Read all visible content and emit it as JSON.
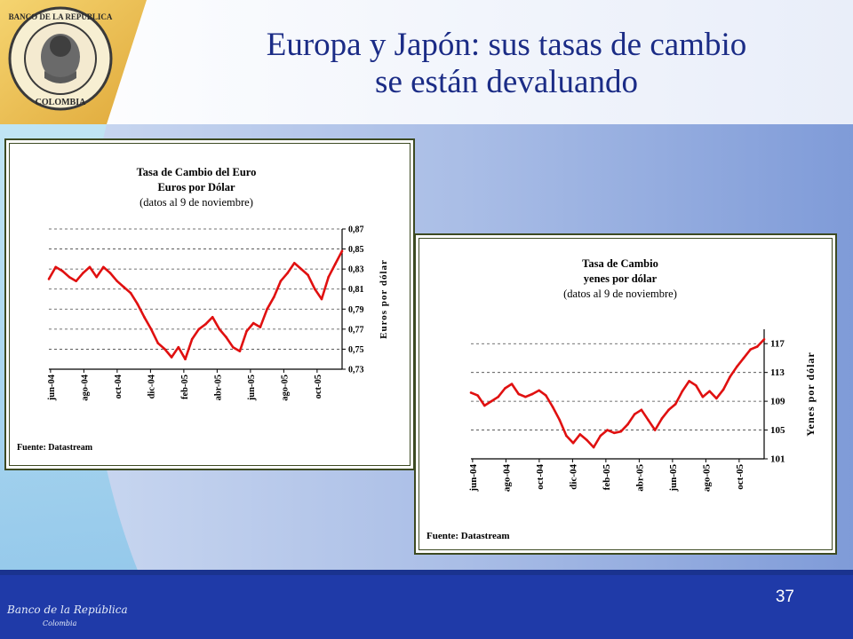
{
  "slide": {
    "title_line1": "Europa y Japón: sus tasas de cambio",
    "title_line2": "se están devaluando",
    "number": "37",
    "logo": {
      "ring_text_top": "BANCO DE LA REPUBLICA",
      "ring_text_bottom": "COLOMBIA"
    },
    "footer_logo_text": "Banco de la República",
    "footer_logo_sub": "Colombia"
  },
  "chart_data": [
    {
      "type": "line",
      "title_lines": [
        "Tasa de Cambio del Euro",
        "Euros por Dólar",
        "(datos al 9 de noviembre)"
      ],
      "ylabel": "Euros por dólar",
      "y_axis_side": "right",
      "ylim": [
        0.73,
        0.87
      ],
      "yticks": [
        "0,87",
        "0,85",
        "0,83",
        "0,81",
        "0,79",
        "0,77",
        "0,75",
        "0,73"
      ],
      "ytick_values": [
        0.87,
        0.85,
        0.83,
        0.81,
        0.79,
        0.77,
        0.75,
        0.73
      ],
      "xticks": [
        "jun-04",
        "ago-04",
        "oct-04",
        "dic-04",
        "feb-05",
        "abr-05",
        "jun-05",
        "ago-05",
        "oct-05"
      ],
      "grid": "horizontal dashed",
      "line_color": "#e01010",
      "source": "Fuente: Datastream",
      "series": [
        {
          "x": [
            0,
            0.4,
            0.8,
            1.2,
            1.6,
            2.0,
            2.4,
            2.8,
            3.2,
            3.6,
            4.0,
            4.4,
            4.8,
            5.2,
            5.6,
            6.0,
            6.4,
            6.8,
            7.2,
            7.6,
            8.0,
            8.4,
            8.8,
            9.2,
            9.6,
            10.0,
            10.4,
            10.8,
            11.2,
            11.6,
            12.0,
            12.4,
            12.8,
            13.2,
            13.6,
            14.0,
            14.4,
            14.8,
            15.2,
            15.6,
            16.0,
            16.4,
            16.8,
            17.2
          ],
          "values": [
            0.82,
            0.832,
            0.828,
            0.822,
            0.818,
            0.826,
            0.832,
            0.822,
            0.832,
            0.826,
            0.818,
            0.812,
            0.806,
            0.795,
            0.782,
            0.77,
            0.756,
            0.75,
            0.742,
            0.752,
            0.74,
            0.76,
            0.77,
            0.775,
            0.782,
            0.77,
            0.762,
            0.752,
            0.748,
            0.768,
            0.776,
            0.772,
            0.79,
            0.802,
            0.818,
            0.826,
            0.836,
            0.83,
            0.824,
            0.81,
            0.8,
            0.822,
            0.835,
            0.848
          ]
        }
      ]
    },
    {
      "type": "line",
      "title_lines": [
        "Tasa de Cambio",
        "yenes por dólar",
        "(datos al 9 de noviembre)"
      ],
      "ylabel": "Yenes por dólar",
      "y_axis_side": "right",
      "ylim": [
        101,
        119
      ],
      "yticks": [
        "117",
        "113",
        "109",
        "105",
        "101"
      ],
      "ytick_values": [
        117,
        113,
        109,
        105,
        101
      ],
      "xticks": [
        "jun-04",
        "ago-04",
        "oct-04",
        "dic-04",
        "feb-05",
        "abr-05",
        "jun-05",
        "ago-05",
        "oct-05"
      ],
      "grid": "horizontal dashed",
      "line_color": "#e01010",
      "source": "Fuente: Datastream",
      "series": [
        {
          "x": [
            0,
            0.4,
            0.8,
            1.2,
            1.6,
            2.0,
            2.4,
            2.8,
            3.2,
            3.6,
            4.0,
            4.4,
            4.8,
            5.2,
            5.6,
            6.0,
            6.4,
            6.8,
            7.2,
            7.6,
            8.0,
            8.4,
            8.8,
            9.2,
            9.6,
            10.0,
            10.4,
            10.8,
            11.2,
            11.6,
            12.0,
            12.4,
            12.8,
            13.2,
            13.6,
            14.0,
            14.4,
            14.8,
            15.2,
            15.6,
            16.0,
            16.4,
            16.8,
            17.2
          ],
          "values": [
            110.2,
            109.8,
            108.4,
            109.0,
            109.6,
            110.8,
            111.4,
            110.0,
            109.6,
            110.0,
            110.5,
            109.8,
            108.2,
            106.4,
            104.2,
            103.2,
            104.4,
            103.6,
            102.6,
            104.2,
            105.0,
            104.6,
            104.8,
            105.8,
            107.2,
            107.8,
            106.4,
            105.0,
            106.6,
            107.8,
            108.6,
            110.4,
            111.8,
            111.2,
            109.6,
            110.4,
            109.4,
            110.6,
            112.4,
            113.8,
            115.0,
            116.2,
            116.6,
            117.6
          ]
        }
      ]
    }
  ]
}
